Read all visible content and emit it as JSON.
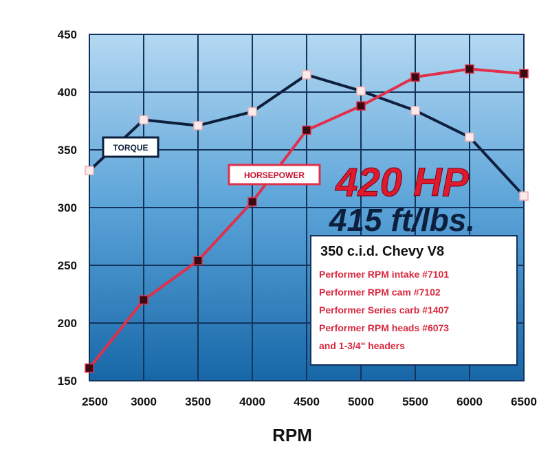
{
  "chart_data": {
    "type": "line",
    "xlabel": "RPM",
    "ylabel": "",
    "x": [
      2500,
      3000,
      3500,
      4000,
      4500,
      5000,
      5500,
      6000,
      6500
    ],
    "xlim": [
      2500,
      6500
    ],
    "ylim": [
      150,
      450
    ],
    "yticks": [
      150,
      200,
      250,
      300,
      350,
      400,
      450
    ],
    "grid": true,
    "series": [
      {
        "name": "TORQUE",
        "color": "#0d1f3c",
        "marker_fill": "#fbeaea",
        "values": [
          332,
          376,
          371,
          383,
          415,
          401,
          384,
          361,
          310
        ]
      },
      {
        "name": "HORSEPOWER",
        "color": "#e0304a",
        "marker_fill": "#3a0a12",
        "values": [
          161,
          220,
          254,
          305,
          367,
          388,
          413,
          420,
          416
        ]
      }
    ],
    "annotations": {
      "hp": "420 HP",
      "torque": "415 ft/lbs."
    },
    "info_box": {
      "title": "350 c.i.d. Chevy V8",
      "lines": [
        "Performer RPM intake #7101",
        "Performer RPM cam #7102",
        "Performer Series carb #1407",
        "Performer RPM heads #6073",
        "and 1-3/4\" headers"
      ]
    }
  }
}
